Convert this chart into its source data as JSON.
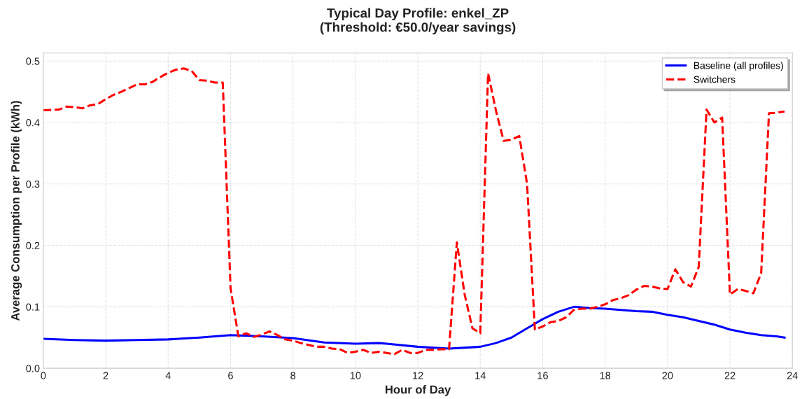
{
  "chart_data": {
    "type": "line",
    "title": "Typical Day Profile: enkel_ZP\n(Threshold: €50.0/year savings)",
    "xlabel": "Hour of Day",
    "ylabel": "Average Consumption per Profile (kWh)",
    "xlim": [
      0,
      24
    ],
    "xticks": [
      0,
      2,
      4,
      6,
      8,
      10,
      12,
      14,
      16,
      18,
      20,
      22,
      24
    ],
    "ylim": [
      0,
      0.513
    ],
    "yticks": [
      {
        "value": 0,
        "label": "0.0"
      },
      0.1,
      0.2,
      0.3,
      0.4,
      0.5
    ],
    "grid": true,
    "legend": "top right",
    "series": [
      {
        "name": "Baseline (all profiles)",
        "color": "#0000ff",
        "line_style": "solid",
        "x": [
          0,
          1,
          2,
          3,
          4,
          5,
          6,
          7,
          8,
          9,
          10,
          10.75,
          11,
          12,
          13,
          14,
          14.5,
          15,
          15.5,
          16,
          16.5,
          17,
          17.5,
          18,
          19,
          19.5,
          20,
          20.5,
          21,
          21.5,
          22,
          22.5,
          23,
          23.5,
          23.75
        ],
        "values": [
          0.048,
          0.046,
          0.045,
          0.046,
          0.047,
          0.05,
          0.054,
          0.052,
          0.049,
          0.042,
          0.04,
          0.041,
          0.04,
          0.035,
          0.032,
          0.035,
          0.041,
          0.05,
          0.065,
          0.08,
          0.092,
          0.1,
          0.098,
          0.097,
          0.093,
          0.092,
          0.087,
          0.083,
          0.077,
          0.071,
          0.063,
          0.058,
          0.054,
          0.052,
          0.05
        ]
      },
      {
        "name": "Switchers",
        "color": "#ff0000",
        "line_style": "dashed",
        "x": [
          0,
          0.5,
          0.75,
          1.0,
          1.25,
          1.5,
          1.75,
          2.0,
          2.25,
          2.5,
          2.75,
          3.0,
          3.25,
          3.5,
          3.75,
          4.0,
          4.25,
          4.5,
          4.75,
          5.0,
          5.25,
          5.5,
          5.75,
          6.0,
          6.25,
          6.5,
          6.75,
          7.0,
          7.25,
          7.5,
          7.75,
          8.0,
          8.25,
          8.5,
          8.75,
          9.0,
          9.25,
          9.5,
          9.75,
          10.0,
          10.25,
          10.5,
          10.75,
          11.0,
          11.25,
          11.5,
          11.75,
          12.0,
          12.25,
          12.5,
          12.75,
          13.0,
          13.25,
          13.5,
          13.75,
          14.0,
          14.25,
          14.5,
          14.75,
          15.0,
          15.25,
          15.5,
          15.75,
          16.0,
          16.25,
          16.5,
          16.75,
          17.0,
          17.25,
          17.5,
          17.75,
          18.0,
          18.25,
          18.5,
          18.75,
          19.0,
          19.25,
          19.5,
          19.75,
          20.0,
          20.25,
          20.5,
          20.75,
          21.0,
          21.25,
          21.5,
          21.75,
          22.0,
          22.25,
          22.5,
          22.75,
          23.0,
          23.25,
          23.5,
          23.75
        ],
        "values": [
          0.42,
          0.421,
          0.426,
          0.425,
          0.423,
          0.428,
          0.43,
          0.438,
          0.445,
          0.45,
          0.456,
          0.462,
          0.462,
          0.466,
          0.474,
          0.481,
          0.486,
          0.488,
          0.484,
          0.469,
          0.468,
          0.465,
          0.465,
          0.13,
          0.052,
          0.057,
          0.051,
          0.055,
          0.06,
          0.054,
          0.047,
          0.045,
          0.041,
          0.038,
          0.035,
          0.035,
          0.032,
          0.031,
          0.025,
          0.027,
          0.03,
          0.025,
          0.027,
          0.025,
          0.023,
          0.03,
          0.025,
          0.025,
          0.03,
          0.03,
          0.031,
          0.031,
          0.205,
          0.12,
          0.065,
          0.057,
          0.48,
          0.42,
          0.37,
          0.372,
          0.378,
          0.3,
          0.063,
          0.068,
          0.075,
          0.077,
          0.083,
          0.095,
          0.097,
          0.097,
          0.1,
          0.104,
          0.111,
          0.114,
          0.119,
          0.128,
          0.134,
          0.133,
          0.13,
          0.129,
          0.161,
          0.14,
          0.133,
          0.165,
          0.421,
          0.4,
          0.408,
          0.12,
          0.129,
          0.126,
          0.122,
          0.155,
          0.415,
          0.416,
          0.418
        ]
      }
    ]
  }
}
